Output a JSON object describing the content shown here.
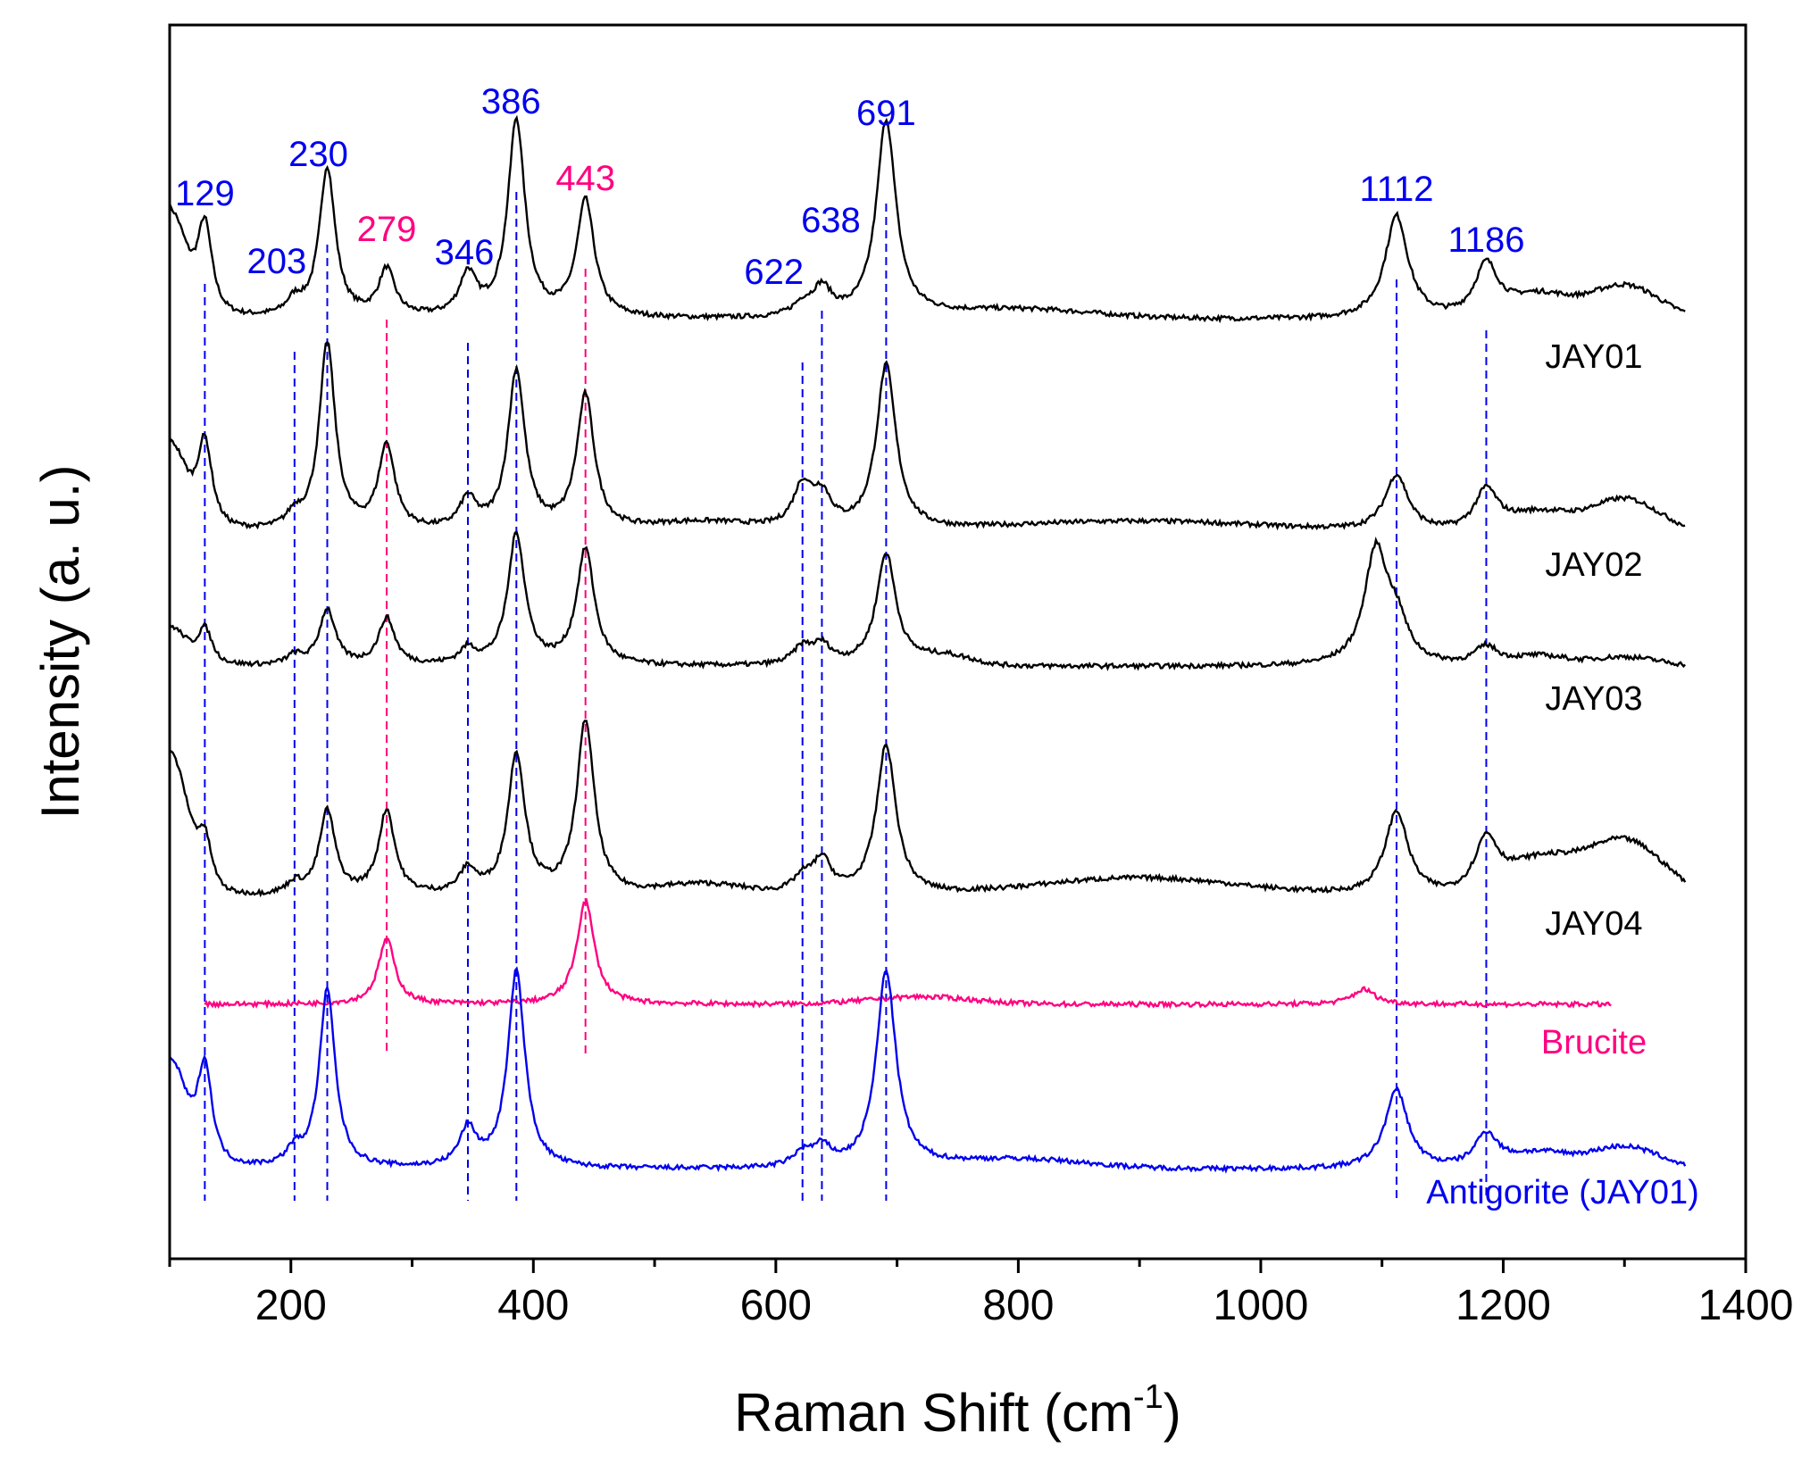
{
  "chart_data": {
    "type": "line",
    "title": "",
    "xlabel": "Raman Shift (cm",
    "xlabel_sup": "-1",
    "xlabel_end": ")",
    "ylabel": "Intensity (a. u.)",
    "xlim": [
      100,
      1400
    ],
    "xticks": [
      200,
      400,
      600,
      800,
      1000,
      1200,
      1400
    ],
    "yticks_shown": false,
    "colors": {
      "serpentine": "#0000ee",
      "brucite": "#ff0080",
      "sample": "#000000"
    },
    "series": [
      {
        "name": "JAY01",
        "color": "#000000",
        "x_start": 100,
        "x_end": 1350,
        "baseline": 0.0,
        "peaks": [
          [
            129,
            0.5
          ],
          [
            203,
            0.08
          ],
          [
            230,
            0.8
          ],
          [
            279,
            0.25
          ],
          [
            346,
            0.22
          ],
          [
            386,
            1.05
          ],
          [
            443,
            0.62
          ],
          [
            622,
            0.06
          ],
          [
            638,
            0.15
          ],
          [
            691,
            1.05
          ],
          [
            1112,
            0.55
          ],
          [
            1186,
            0.28
          ]
        ],
        "bumps": [
          [
            100,
            0.55,
            18
          ],
          [
            800,
            0.05,
            90
          ],
          [
            1230,
            0.12,
            35
          ],
          [
            1300,
            0.18,
            40
          ]
        ]
      },
      {
        "name": "JAY02",
        "color": "#000000",
        "x_start": 100,
        "x_end": 1350,
        "baseline": 0.0,
        "peaks": [
          [
            129,
            0.48
          ],
          [
            203,
            0.07
          ],
          [
            230,
            1.0
          ],
          [
            279,
            0.45
          ],
          [
            346,
            0.16
          ],
          [
            386,
            0.85
          ],
          [
            443,
            0.72
          ],
          [
            622,
            0.22
          ],
          [
            638,
            0.17
          ],
          [
            691,
            0.88
          ],
          [
            1112,
            0.3
          ],
          [
            1186,
            0.22
          ]
        ],
        "bumps": [
          [
            100,
            0.45,
            18
          ],
          [
            540,
            0.05,
            60
          ],
          [
            900,
            0.06,
            150
          ],
          [
            1230,
            0.1,
            35
          ],
          [
            1300,
            0.18,
            40
          ]
        ]
      },
      {
        "name": "JAY03",
        "color": "#000000",
        "x_start": 100,
        "x_end": 1350,
        "baseline": 0.0,
        "peaks": [
          [
            129,
            0.2
          ],
          [
            203,
            0.05
          ],
          [
            230,
            0.3
          ],
          [
            279,
            0.25
          ],
          [
            346,
            0.08
          ],
          [
            386,
            0.7
          ],
          [
            443,
            0.62
          ],
          [
            622,
            0.09
          ],
          [
            638,
            0.1
          ],
          [
            691,
            0.6
          ],
          [
            1095,
            0.6
          ],
          [
            1112,
            0.2
          ],
          [
            1186,
            0.1
          ]
        ],
        "bumps": [
          [
            100,
            0.2,
            18
          ],
          [
            740,
            0.05,
            30
          ],
          [
            1230,
            0.05,
            30
          ],
          [
            1300,
            0.05,
            40
          ]
        ]
      },
      {
        "name": "JAY04",
        "color": "#000000",
        "x_start": 100,
        "x_end": 1350,
        "baseline": 0.0,
        "peaks": [
          [
            129,
            0.28
          ],
          [
            203,
            0.06
          ],
          [
            230,
            0.45
          ],
          [
            279,
            0.45
          ],
          [
            346,
            0.13
          ],
          [
            386,
            0.75
          ],
          [
            443,
            0.93
          ],
          [
            622,
            0.08
          ],
          [
            638,
            0.18
          ],
          [
            691,
            0.8
          ],
          [
            1112,
            0.45
          ],
          [
            1186,
            0.28
          ]
        ],
        "bumps": [
          [
            100,
            0.75,
            20
          ],
          [
            540,
            0.06,
            50
          ],
          [
            900,
            0.1,
            120
          ],
          [
            1230,
            0.18,
            40
          ],
          [
            1300,
            0.3,
            45
          ]
        ]
      },
      {
        "name": "Brucite",
        "color": "#ff0080",
        "x_start": 129,
        "x_end": 1290,
        "baseline": 0.0,
        "peaks": [
          [
            279,
            0.35
          ],
          [
            443,
            0.55
          ],
          [
            1085,
            0.08
          ]
        ],
        "bumps": [
          [
            720,
            0.04,
            60
          ]
        ]
      },
      {
        "name": "Antigorite (JAY01)",
        "color": "#0000ee",
        "x_start": 100,
        "x_end": 1350,
        "baseline": 0.0,
        "peaks": [
          [
            129,
            0.55
          ],
          [
            203,
            0.08
          ],
          [
            230,
            0.95
          ],
          [
            346,
            0.2
          ],
          [
            386,
            1.05
          ],
          [
            622,
            0.07
          ],
          [
            638,
            0.1
          ],
          [
            691,
            1.05
          ],
          [
            1112,
            0.42
          ],
          [
            1186,
            0.18
          ]
        ],
        "bumps": [
          [
            100,
            0.55,
            18
          ],
          [
            800,
            0.05,
            80
          ],
          [
            1230,
            0.08,
            35
          ],
          [
            1300,
            0.12,
            40
          ]
        ]
      }
    ],
    "peak_annotations": [
      {
        "label": "129",
        "x": 129,
        "color": "#0000ee"
      },
      {
        "label": "203",
        "x": 203,
        "color": "#0000ee"
      },
      {
        "label": "230",
        "x": 230,
        "color": "#0000ee"
      },
      {
        "label": "279",
        "x": 279,
        "color": "#ff0080"
      },
      {
        "label": "346",
        "x": 346,
        "color": "#0000ee"
      },
      {
        "label": "386",
        "x": 386,
        "color": "#0000ee"
      },
      {
        "label": "443",
        "x": 443,
        "color": "#ff0080"
      },
      {
        "label": "622",
        "x": 622,
        "color": "#0000ee"
      },
      {
        "label": "638",
        "x": 638,
        "color": "#0000ee"
      },
      {
        "label": "691",
        "x": 691,
        "color": "#0000ee"
      },
      {
        "label": "1112",
        "x": 1112,
        "color": "#0000ee"
      },
      {
        "label": "1186",
        "x": 1186,
        "color": "#0000ee"
      }
    ]
  }
}
